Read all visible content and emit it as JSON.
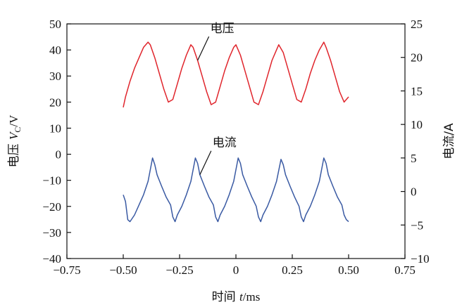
{
  "chart_data": {
    "type": "line",
    "title": "",
    "xlabel": {
      "prefix": "时间 ",
      "var": "t",
      "unit": "/ms"
    },
    "ylabel_left": {
      "prefix": "电压 ",
      "var": "V",
      "sub": "C",
      "unit": "/V"
    },
    "ylabel_right": "电流/A",
    "xlim": [
      -0.75,
      0.75
    ],
    "ylim_left": [
      -40,
      50
    ],
    "ylim_right": [
      -10,
      25
    ],
    "xticks": [
      -0.75,
      -0.5,
      -0.25,
      0,
      0.25,
      0.5,
      0.75
    ],
    "xtick_labels": [
      "−0.75",
      "−0.50",
      "−0.25",
      "0",
      "0.25",
      "0.50",
      "0.75"
    ],
    "yticks_left": [
      -40,
      -30,
      -20,
      -10,
      0,
      10,
      20,
      30,
      40,
      50
    ],
    "ytick_labels_left": [
      "−40",
      "−30",
      "−20",
      "−10",
      "0",
      "10",
      "20",
      "30",
      "40",
      "50"
    ],
    "yticks_right": [
      -10,
      -5,
      0,
      5,
      10,
      15,
      20,
      25
    ],
    "ytick_labels_right": [
      "−10",
      "−5",
      "0",
      "5",
      "10",
      "15",
      "20",
      "25"
    ],
    "grid": false,
    "legend": "none",
    "series": [
      {
        "name": "电压",
        "axis": "left",
        "color": "#e0252c",
        "x": [
          -0.5,
          -0.49,
          -0.47,
          -0.45,
          -0.43,
          -0.41,
          -0.39,
          -0.38,
          -0.36,
          -0.34,
          -0.32,
          -0.3,
          -0.28,
          -0.26,
          -0.24,
          -0.22,
          -0.2,
          -0.19,
          -0.17,
          -0.15,
          -0.13,
          -0.11,
          -0.09,
          -0.07,
          -0.05,
          -0.03,
          -0.01,
          0.0,
          0.02,
          0.04,
          0.06,
          0.08,
          0.1,
          0.12,
          0.14,
          0.16,
          0.18,
          0.19,
          0.21,
          0.23,
          0.25,
          0.27,
          0.29,
          0.31,
          0.33,
          0.35,
          0.37,
          0.39,
          0.4,
          0.42,
          0.44,
          0.46,
          0.48,
          0.5
        ],
        "y": [
          18,
          22,
          28,
          33,
          37,
          41,
          43,
          42,
          37,
          31,
          25,
          20,
          21,
          27,
          33,
          38,
          42,
          41,
          36,
          30,
          24,
          19,
          20,
          26,
          32,
          37,
          41,
          42,
          38,
          32,
          26,
          20,
          19,
          24,
          30,
          36,
          40,
          42,
          39,
          33,
          27,
          21,
          20,
          25,
          31,
          36,
          40,
          43,
          41,
          36,
          30,
          24,
          20,
          22
        ]
      },
      {
        "name": "电流",
        "axis": "right",
        "color": "#3a5aa3",
        "x": [
          -0.5,
          -0.49,
          -0.48,
          -0.47,
          -0.45,
          -0.43,
          -0.41,
          -0.39,
          -0.37,
          -0.36,
          -0.35,
          -0.33,
          -0.31,
          -0.29,
          -0.28,
          -0.27,
          -0.26,
          -0.24,
          -0.22,
          -0.2,
          -0.18,
          -0.17,
          -0.16,
          -0.14,
          -0.12,
          -0.1,
          -0.09,
          -0.08,
          -0.07,
          -0.05,
          -0.03,
          -0.01,
          0.01,
          0.02,
          0.03,
          0.05,
          0.07,
          0.09,
          0.1,
          0.11,
          0.12,
          0.14,
          0.16,
          0.18,
          0.2,
          0.21,
          0.22,
          0.24,
          0.26,
          0.28,
          0.29,
          0.3,
          0.31,
          0.33,
          0.35,
          0.37,
          0.39,
          0.4,
          0.41,
          0.43,
          0.45,
          0.47,
          0.48,
          0.49,
          0.5
        ],
        "y": [
          -0.5,
          -1.5,
          -4.2,
          -4.5,
          -3.5,
          -2.0,
          -0.5,
          1.5,
          5.0,
          4.0,
          2.5,
          0.8,
          -0.8,
          -2.0,
          -3.8,
          -4.5,
          -3.5,
          -2.2,
          -0.5,
          1.5,
          5.0,
          4.2,
          2.5,
          0.8,
          -0.8,
          -2.0,
          -3.8,
          -4.5,
          -3.5,
          -2.2,
          -0.5,
          1.5,
          5.0,
          4.2,
          2.5,
          0.8,
          -0.8,
          -2.2,
          -3.8,
          -4.5,
          -3.5,
          -2.2,
          -0.5,
          1.5,
          4.8,
          4.0,
          2.5,
          0.8,
          -0.8,
          -2.2,
          -3.8,
          -4.5,
          -3.5,
          -2.2,
          -0.5,
          1.5,
          5.0,
          4.2,
          2.5,
          0.8,
          -0.8,
          -2.0,
          -3.5,
          -4.2,
          -4.5
        ]
      }
    ],
    "annotations": [
      {
        "text": "电压",
        "target_series": 0,
        "target_x": -0.18
      },
      {
        "text": "电流",
        "target_series": 1,
        "target_x": -0.16
      }
    ]
  }
}
